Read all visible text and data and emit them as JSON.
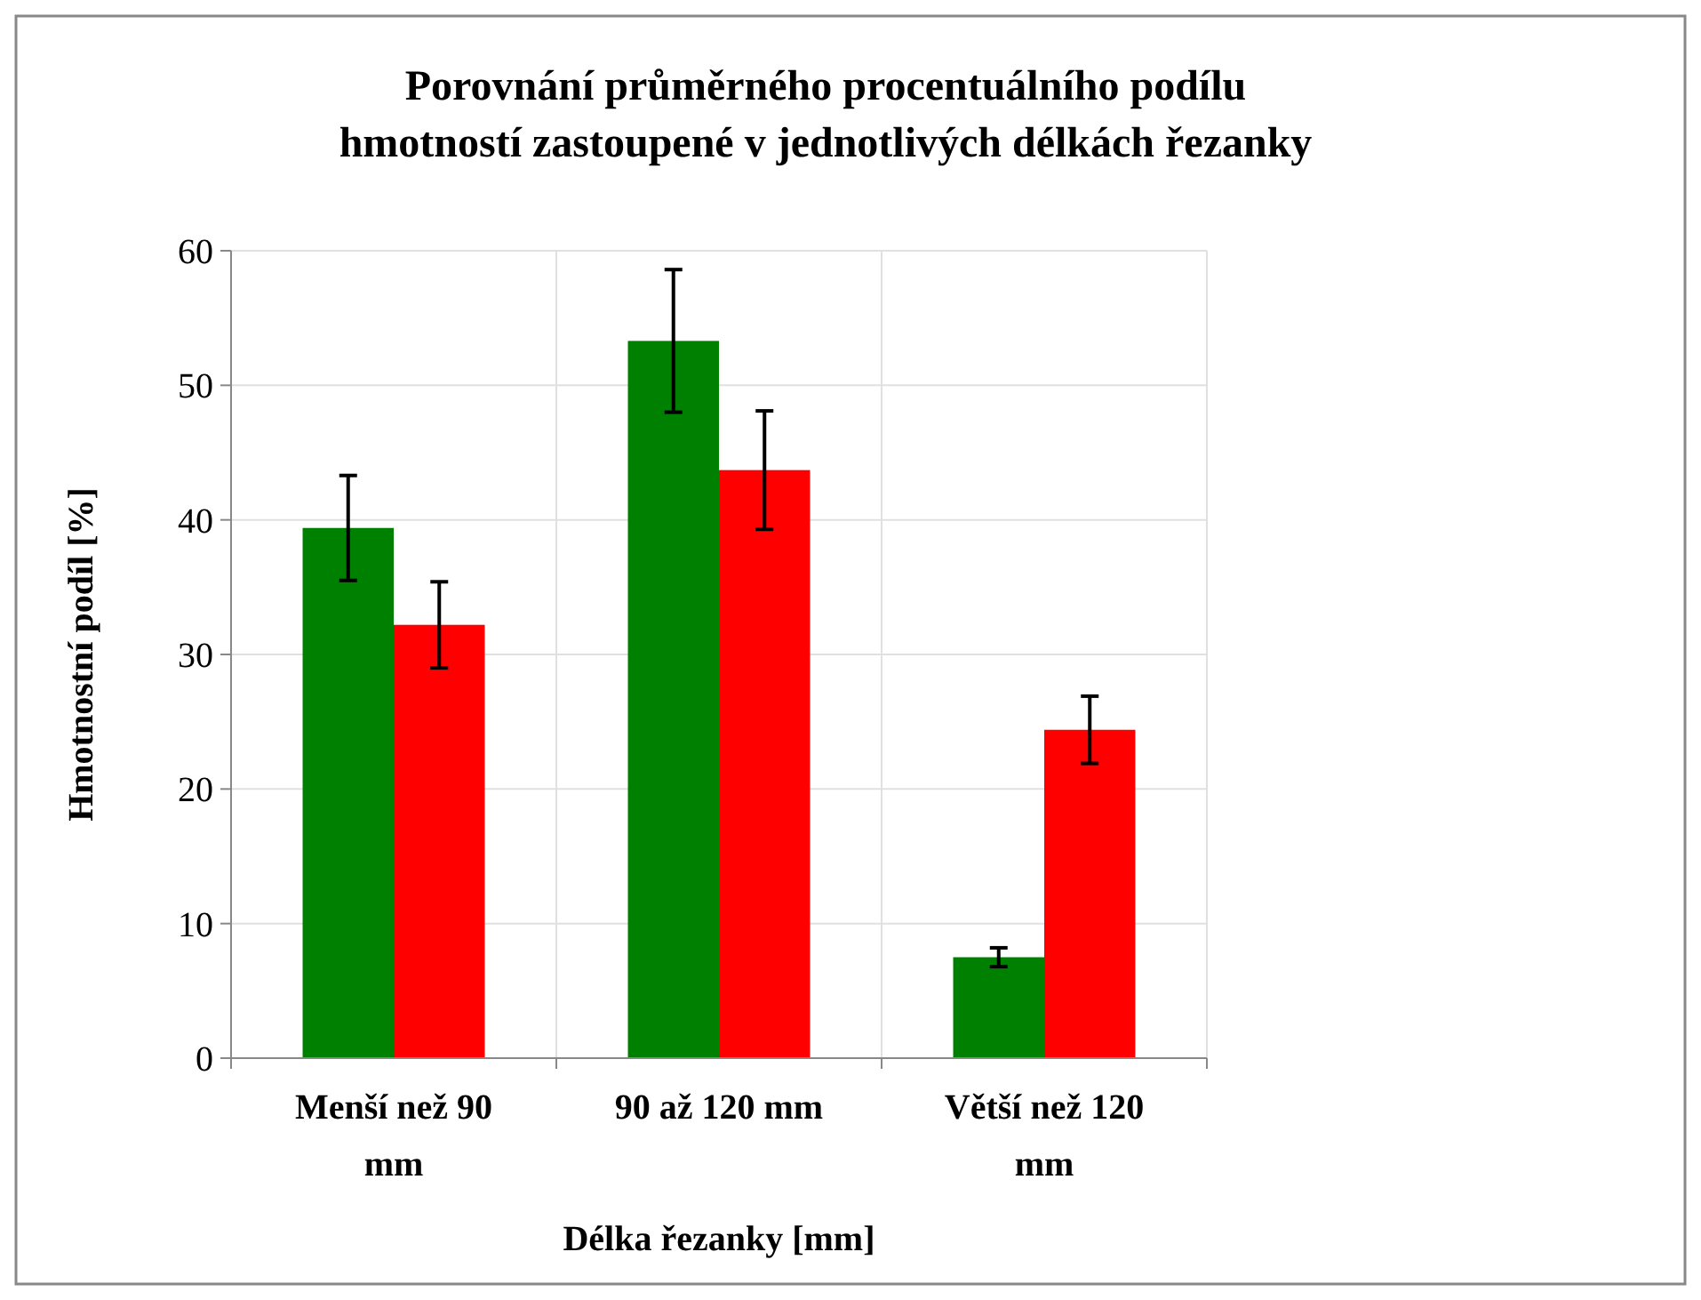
{
  "chart_data": {
    "type": "bar",
    "title": "Porovnání průměrného procentuálního podílu\nhmotností zastoupené v jednotlivých délkách řezanky",
    "xlabel": "Délka řezanky [mm]",
    "ylabel": "Hmotnostní podíl [%]",
    "categories": [
      "Menší než 90 mm",
      "90 až 120 mm",
      "Větší než 120 mm"
    ],
    "series": [
      {
        "color": "#008000",
        "values": [
          39.4,
          53.3,
          7.5
        ],
        "errors": [
          3.9,
          5.3,
          0.7
        ]
      },
      {
        "color": "#ff0000",
        "values": [
          32.2,
          43.7,
          24.4
        ],
        "errors": [
          3.2,
          4.4,
          2.5
        ]
      }
    ],
    "ylim": [
      0,
      60
    ],
    "yticks": [
      0,
      10,
      20,
      30,
      40,
      50,
      60
    ],
    "grid": true
  }
}
